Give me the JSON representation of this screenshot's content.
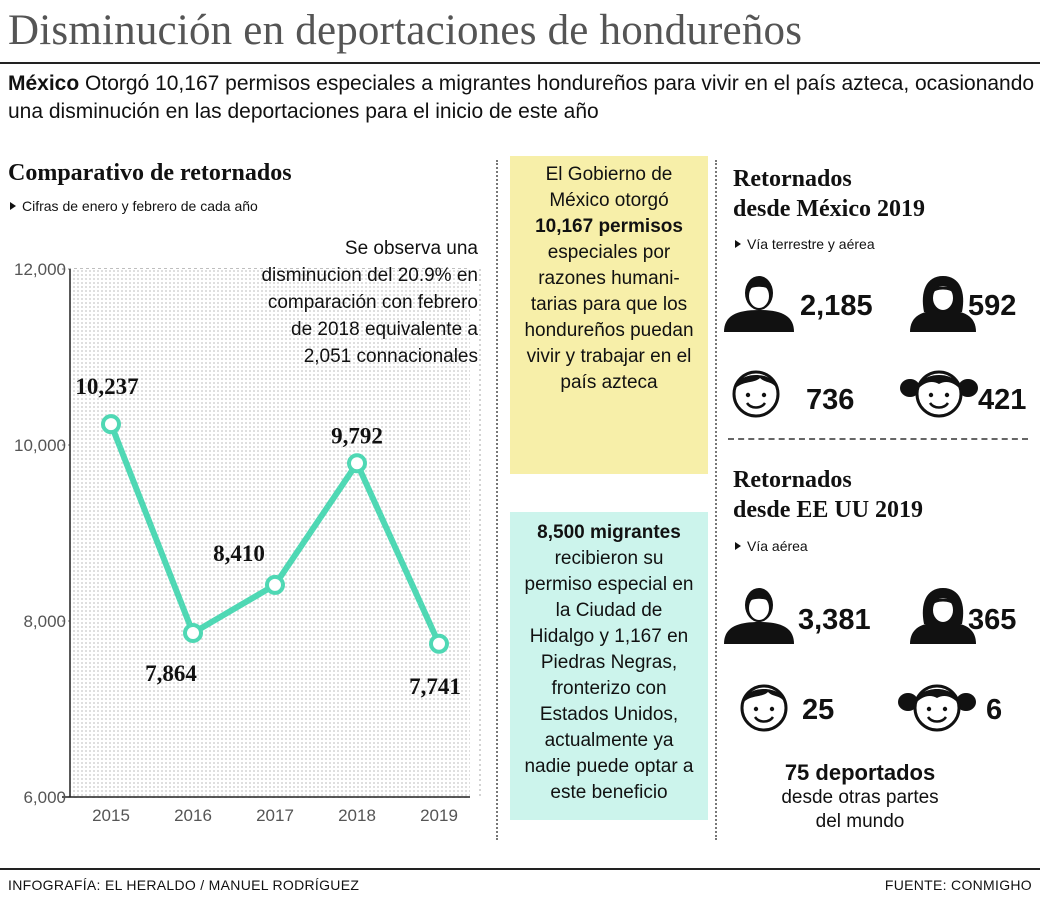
{
  "header": {
    "title": "Disminución en deportaciones de hondureños",
    "intro_bold": "México",
    "intro_text": " Otorgó 10,167 permisos especiales a migrantes hondureños para vivir en el país azteca, ocasionando una disminución en las deportaciones para el inicio de este año"
  },
  "chart_section": {
    "title": "Comparativo de retornados",
    "subtitle": "Cifras de enero y febrero de cada año",
    "note": "Se observa una disminucion del 20.9% en comparación con febrero de 2018 equivalente a 2,051 connacionales"
  },
  "chart_data": {
    "type": "line",
    "title": "Comparativo de retornados",
    "subtitle": "Cifras de enero y febrero de cada año",
    "categories": [
      "2015",
      "2016",
      "2017",
      "2018",
      "2019"
    ],
    "values": [
      10237,
      7864,
      8410,
      9792,
      7741
    ],
    "value_labels": [
      "10,237",
      "7,864",
      "8,410",
      "9,792",
      "7,741"
    ],
    "ylim": [
      6000,
      12000
    ],
    "yticks": [
      6000,
      8000,
      10000,
      12000
    ],
    "ytick_labels": [
      "6,000",
      "8,000",
      "10,000",
      "12,000"
    ],
    "grid": true,
    "line_color": "#4fd8b4"
  },
  "info_boxes": {
    "mexico_box": {
      "line1": "El Gobierno de México otorgó",
      "bold": "10,167 permisos",
      "line2": "especiales por razones humani-tarias para que los hondureños puedan vivir y trabajar en el país azteca"
    },
    "migrants_box": {
      "bold": "8,500 migrantes",
      "text": "recibieron su permiso especial en la Ciudad de Hidalgo y 1,167 en Piedras Negras, fronterizo con Estados Unidos, actualmente ya nadie puede optar a este beneficio"
    }
  },
  "retornados_mexico": {
    "title_line1": "Retornados",
    "title_line2": "desde México 2019",
    "subtitle": "Vía terrestre y aérea",
    "men": "2,185",
    "women": "592",
    "boys": "736",
    "girls": "421"
  },
  "retornados_eeuu": {
    "title_line1": "Retornados",
    "title_line2": "desde EE UU 2019",
    "subtitle": "Vía aérea",
    "men": "3,381",
    "women": "365",
    "boys": "25",
    "girls": "6"
  },
  "deportados_otros": {
    "number_text": "75 deportados",
    "text_line1": "desde otras partes",
    "text_line2": "del mundo"
  },
  "footer": {
    "credit": "INFOGRAFÍA: EL HERALDO / MANUEL RODRÍGUEZ",
    "source": "FUENTE: CONMIGHO"
  },
  "colors": {
    "line": "#4fd8b4",
    "box_yellow": "#f7efa9",
    "box_cyan": "#ccf4ec"
  }
}
